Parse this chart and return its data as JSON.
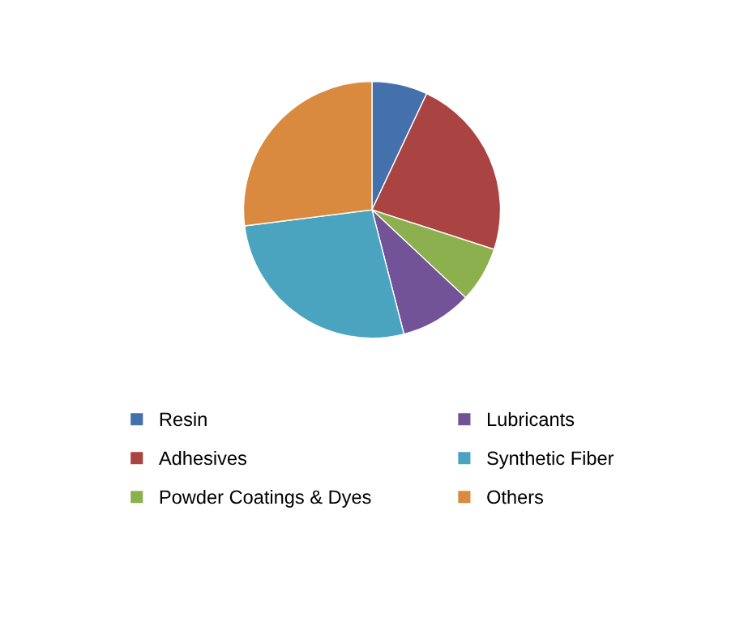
{
  "chart_data": {
    "type": "pie",
    "categories": [
      "Resin",
      "Adhesives",
      "Powder Coatings & Dyes",
      "Lubricants",
      "Synthetic Fiber",
      "Others"
    ],
    "values": [
      7,
      23,
      7,
      9,
      27,
      27
    ],
    "colors": [
      "#4470ac",
      "#a94442",
      "#8cb04e",
      "#725397",
      "#4aa4bf",
      "#d98a3e"
    ],
    "legend": "bottom"
  }
}
